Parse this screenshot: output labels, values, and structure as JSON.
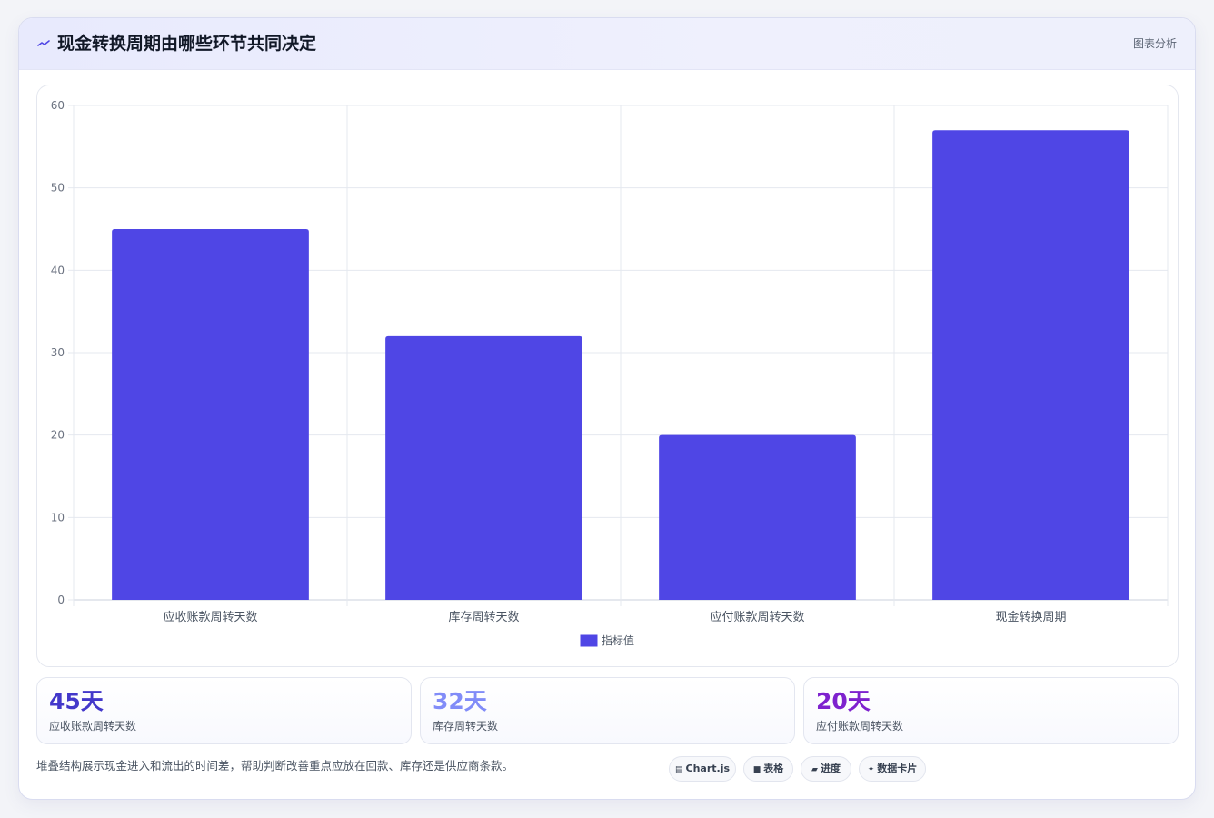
{
  "header": {
    "icon": "trend-icon",
    "title": "现金转换周期由哪些环节共同决定",
    "action_label": "图表分析"
  },
  "chart_data": {
    "type": "bar",
    "categories": [
      "应收账款周转天数",
      "库存周转天数",
      "应付账款周转天数",
      "现金转换周期"
    ],
    "series": [
      {
        "name": "指标值",
        "values": [
          45,
          32,
          20,
          57
        ],
        "color": "#4f46e5"
      }
    ],
    "ylim": [
      0,
      60
    ],
    "yticks": [
      0,
      10,
      20,
      30,
      40,
      50,
      60
    ],
    "grid": true,
    "legend_position": "bottom"
  },
  "stats": [
    {
      "value": "45天",
      "label": "应收账款周转天数",
      "color": "#4338ca"
    },
    {
      "value": "32天",
      "label": "库存周转天数",
      "color": "#818cf8"
    },
    {
      "value": "20天",
      "label": "应付账款周转天数",
      "color": "#7e22ce"
    }
  ],
  "footer": {
    "note": "堆叠结构展示现金进入和流出的时间差，帮助判断改善重点应放在回款、库存还是供应商条款。",
    "tags": [
      {
        "icon": "chart-icon",
        "glyph": "▤",
        "label": "Chart.js"
      },
      {
        "icon": "table-icon",
        "glyph": "■",
        "label": "表格"
      },
      {
        "icon": "progress-icon",
        "glyph": "▰",
        "label": "进度"
      },
      {
        "icon": "card-icon",
        "glyph": "✦",
        "label": "数据卡片"
      }
    ]
  }
}
